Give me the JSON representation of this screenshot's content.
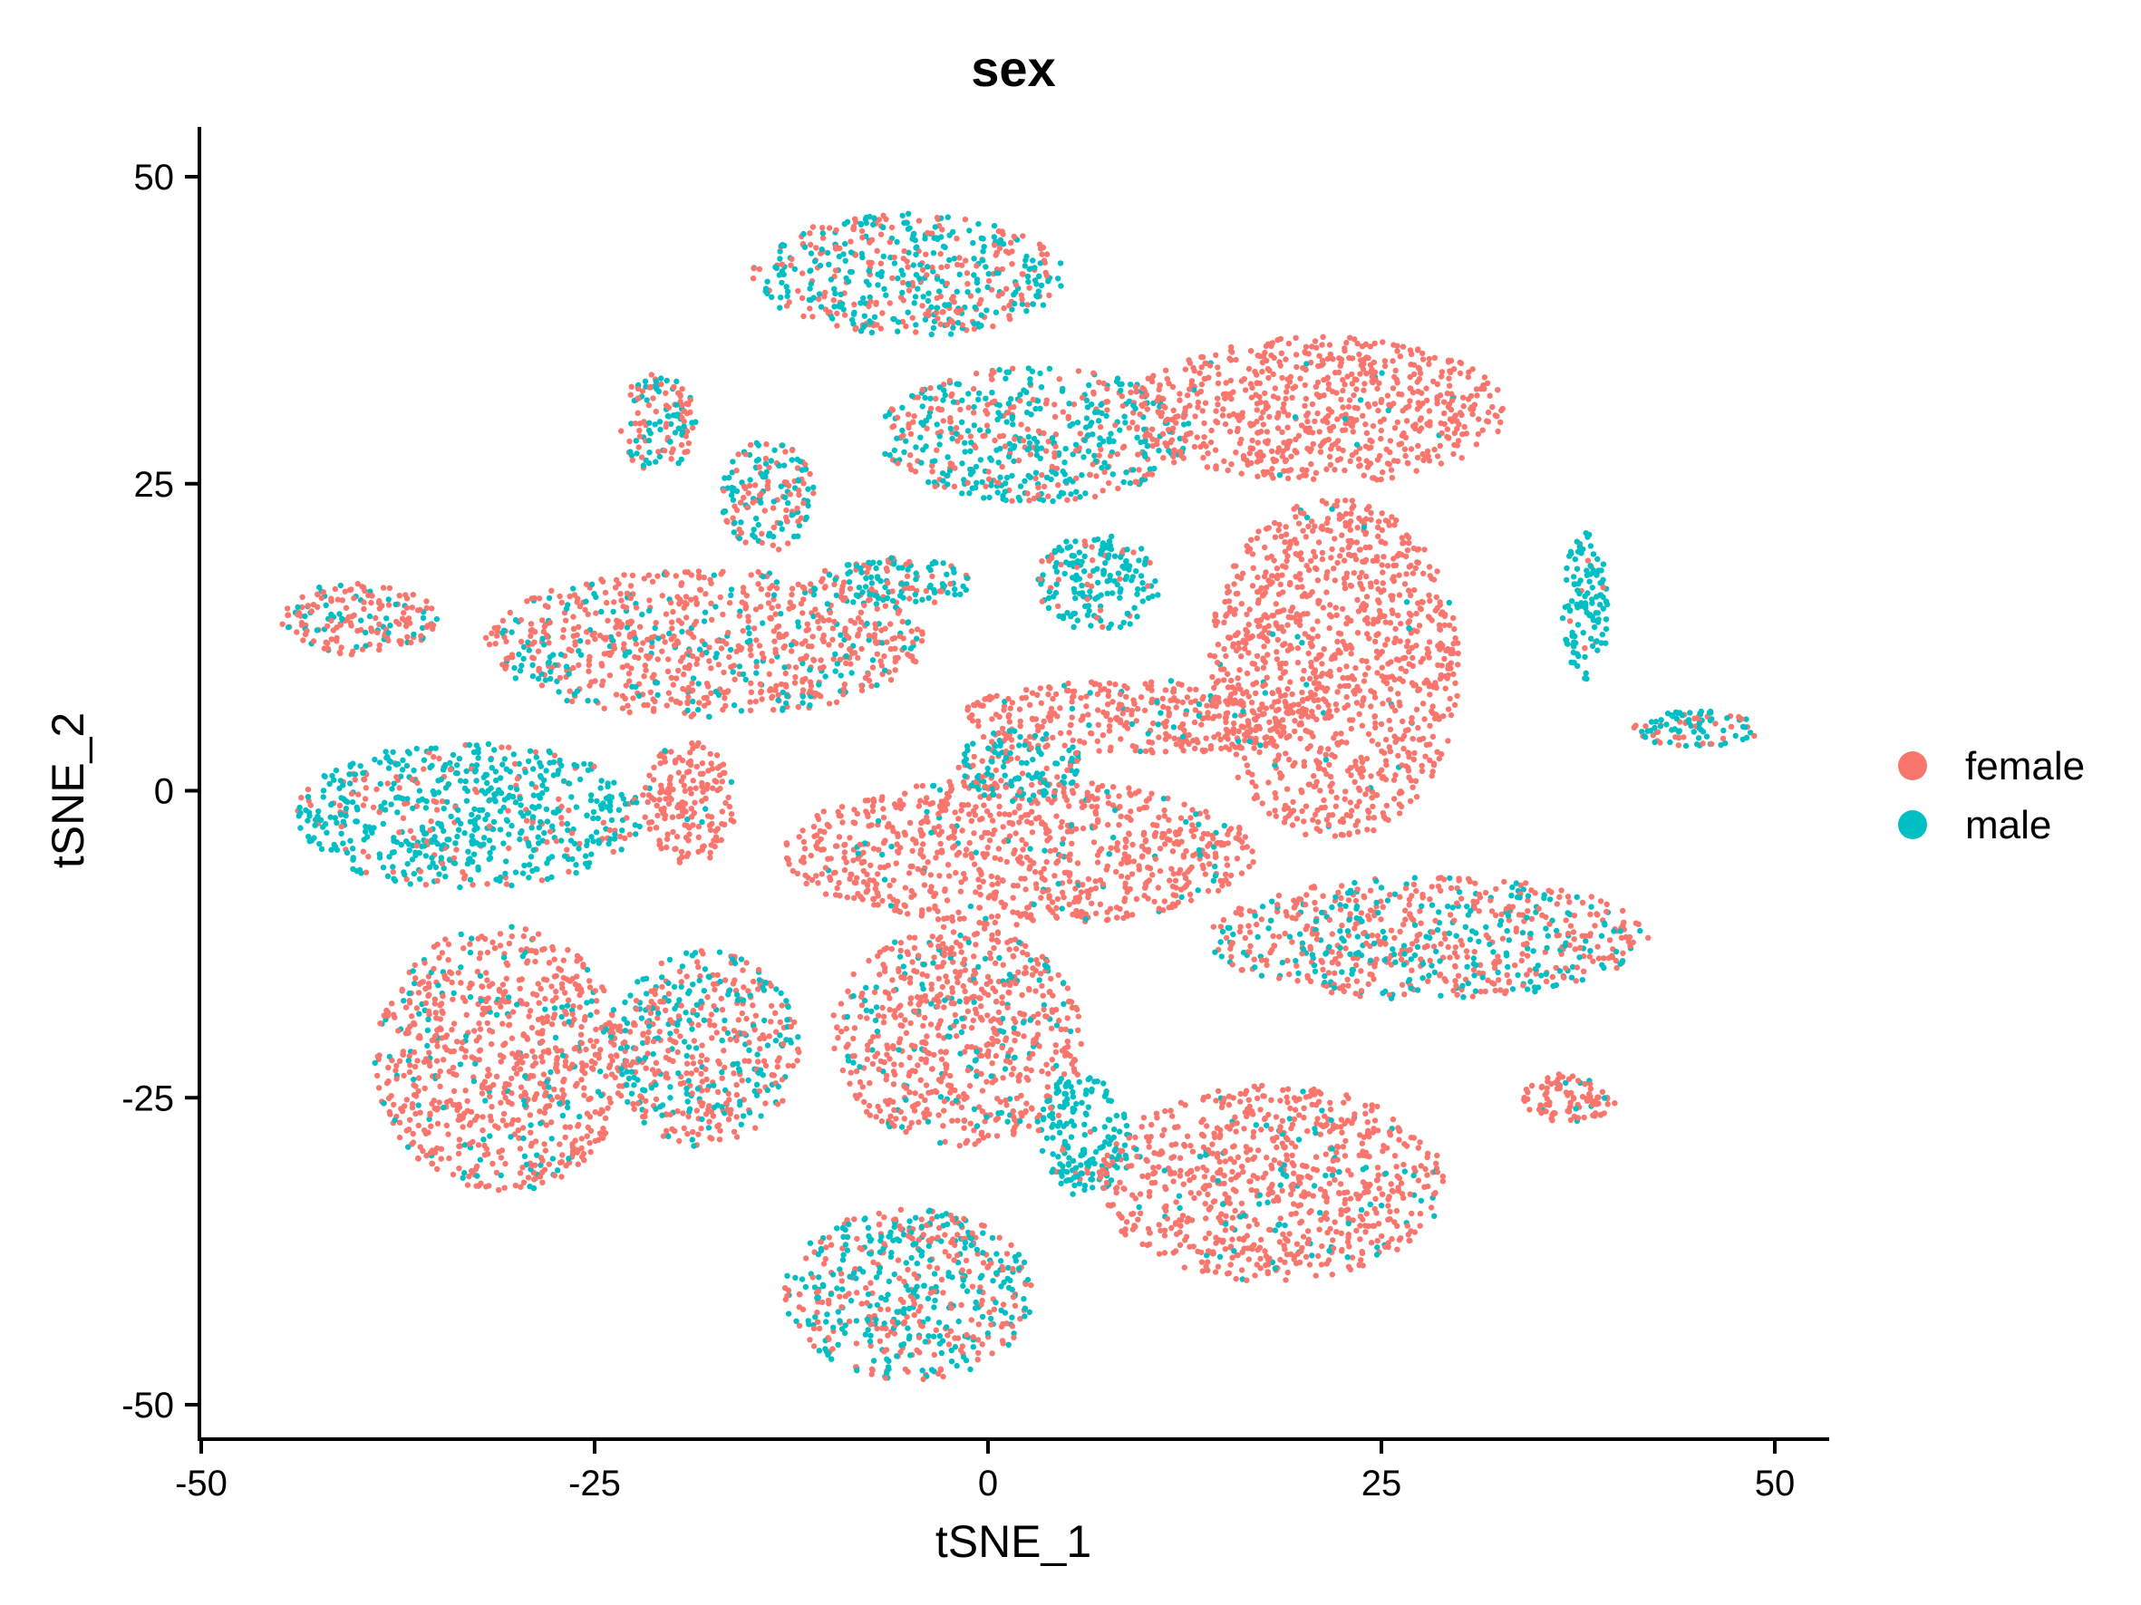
{
  "chart_data": {
    "type": "scatter",
    "title": "sex",
    "xlabel": "tSNE_1",
    "ylabel": "tSNE_2",
    "xlim": [
      -50,
      50
    ],
    "ylim": [
      -50,
      50
    ],
    "xticks": [
      -50,
      -25,
      0,
      25,
      50
    ],
    "yticks": [
      -50,
      -25,
      0,
      25,
      50
    ],
    "xtick_labels": [
      "-50",
      "-25",
      "0",
      "25",
      "50"
    ],
    "ytick_labels": [
      "-50",
      "-25",
      "0",
      "25",
      "50"
    ],
    "grid": false,
    "legend_position": "right",
    "series": [
      {
        "name": "female",
        "color": "#F8766D"
      },
      {
        "name": "male",
        "color": "#00BFC4"
      }
    ],
    "clusters": [
      {
        "cx": -5,
        "cy": 42,
        "rx": 10,
        "ry": 5,
        "female": 0.45
      },
      {
        "cx": 3,
        "cy": 29,
        "rx": 10,
        "ry": 5.5,
        "female": 0.4
      },
      {
        "cx": 21,
        "cy": 31,
        "rx": 12,
        "ry": 6,
        "female": 0.98
      },
      {
        "cx": -21,
        "cy": 30,
        "rx": 2.5,
        "ry": 4,
        "female": 0.55
      },
      {
        "cx": -14,
        "cy": 24,
        "rx": 3,
        "ry": 4.5,
        "female": 0.45
      },
      {
        "cx": -6,
        "cy": 17,
        "rx": 5,
        "ry": 2,
        "female": 0.3
      },
      {
        "cx": 7,
        "cy": 17,
        "rx": 4,
        "ry": 4,
        "female": 0.15
      },
      {
        "cx": 22,
        "cy": 10,
        "rx": 8,
        "ry": 14,
        "female": 0.98
      },
      {
        "cx": 38,
        "cy": 15,
        "rx": 1.5,
        "ry": 6,
        "female": 0.1
      },
      {
        "cx": 45,
        "cy": 5,
        "rx": 4,
        "ry": 1.5,
        "female": 0.3
      },
      {
        "cx": -40,
        "cy": 14,
        "rx": 5,
        "ry": 3,
        "female": 0.7
      },
      {
        "cx": -18,
        "cy": 12,
        "rx": 14,
        "ry": 6,
        "female": 0.75
      },
      {
        "cx": 10,
        "cy": 6,
        "rx": 12,
        "ry": 3,
        "female": 0.95
      },
      {
        "cx": -33,
        "cy": -2,
        "rx": 11,
        "ry": 6,
        "female": 0.2
      },
      {
        "cx": -19,
        "cy": -1,
        "rx": 3,
        "ry": 5,
        "female": 0.95
      },
      {
        "cx": 2,
        "cy": -5,
        "rx": 15,
        "ry": 6,
        "female": 0.93
      },
      {
        "cx": 2,
        "cy": 2,
        "rx": 4,
        "ry": 3,
        "female": 0.3
      },
      {
        "cx": 28,
        "cy": -12,
        "rx": 14,
        "ry": 5,
        "female": 0.6
      },
      {
        "cx": -31,
        "cy": -22,
        "rx": 8,
        "ry": 11,
        "female": 0.85
      },
      {
        "cx": -18,
        "cy": -21,
        "rx": 6,
        "ry": 8,
        "female": 0.6
      },
      {
        "cx": -2,
        "cy": -20,
        "rx": 8,
        "ry": 9,
        "female": 0.8
      },
      {
        "cx": 6,
        "cy": -28,
        "rx": 3,
        "ry": 5,
        "female": 0.1
      },
      {
        "cx": 18,
        "cy": -32,
        "rx": 11,
        "ry": 8,
        "female": 0.88
      },
      {
        "cx": 37,
        "cy": -25,
        "rx": 3,
        "ry": 2,
        "female": 0.9
      },
      {
        "cx": -5,
        "cy": -41,
        "rx": 8,
        "ry": 7,
        "female": 0.5
      }
    ]
  }
}
